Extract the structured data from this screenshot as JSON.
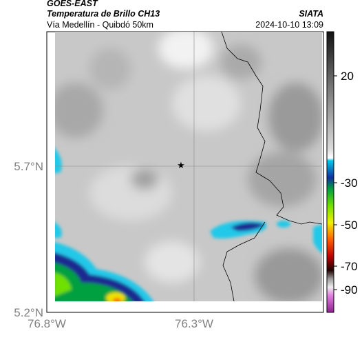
{
  "header": {
    "source": "GOES-EAST",
    "title": "Temperatura de Brillo CH13",
    "subtitle": "Vía Medellín - Quibdó 50km",
    "org": "SIATA",
    "timestamp": "2024-10-10 13:09"
  },
  "map": {
    "lat_labels": [
      "5.7°N",
      "5.2°N"
    ],
    "lon_labels": [
      "76.8°W",
      "76.3°W"
    ]
  },
  "colorbar": {
    "ticks": [
      20,
      -30,
      -50,
      -70,
      -90
    ]
  }
}
